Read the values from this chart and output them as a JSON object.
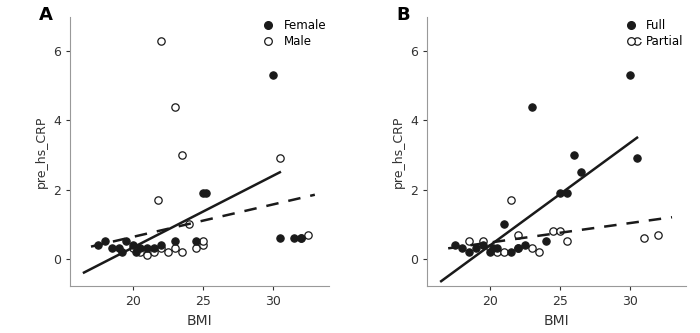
{
  "panel_A": {
    "label": "A",
    "female_bmi": [
      17.5,
      18.0,
      18.5,
      19.0,
      19.2,
      19.5,
      20.0,
      20.2,
      20.5,
      21.0,
      21.5,
      22.0,
      23.0,
      24.5,
      25.0,
      25.2,
      30.0,
      30.5,
      31.5,
      32.0
    ],
    "female_crp": [
      0.4,
      0.5,
      0.3,
      0.3,
      0.2,
      0.5,
      0.4,
      0.2,
      0.3,
      0.3,
      0.3,
      0.4,
      0.5,
      0.5,
      1.9,
      1.9,
      5.3,
      0.6,
      0.6,
      0.6
    ],
    "male_bmi": [
      20.0,
      20.5,
      21.0,
      21.5,
      21.8,
      22.0,
      22.5,
      23.0,
      23.5,
      23.5,
      24.0,
      24.5,
      25.0,
      25.0,
      22.0,
      23.0,
      30.5,
      32.0,
      32.5
    ],
    "male_crp": [
      0.3,
      0.2,
      0.1,
      0.2,
      1.7,
      0.3,
      0.2,
      0.3,
      0.2,
      3.0,
      1.0,
      0.3,
      0.4,
      0.5,
      6.3,
      4.4,
      2.9,
      0.6,
      0.7
    ],
    "solid_line_x": [
      16.5,
      30.5
    ],
    "solid_line_y": [
      -0.4,
      2.5
    ],
    "dashed_line_x": [
      17.0,
      33.0
    ],
    "dashed_line_y": [
      0.35,
      1.85
    ],
    "legend_labels": [
      "Female",
      "Male"
    ],
    "xlabel": "BMI",
    "ylabel": "pre_hs_CRP",
    "ylim": [
      -0.8,
      7.0
    ],
    "xlim": [
      15.5,
      34.0
    ],
    "yticks": [
      0,
      2,
      4,
      6
    ],
    "xticks": [
      20,
      25,
      30
    ]
  },
  "panel_B": {
    "label": "B",
    "full_bmi": [
      17.5,
      18.0,
      18.5,
      19.0,
      19.5,
      20.0,
      20.2,
      20.5,
      21.0,
      21.5,
      22.0,
      22.5,
      23.0,
      24.0,
      25.0,
      25.5,
      26.0,
      26.5,
      30.0,
      30.5
    ],
    "full_crp": [
      0.4,
      0.3,
      0.2,
      0.3,
      0.4,
      0.2,
      0.3,
      0.3,
      1.0,
      0.2,
      0.3,
      0.4,
      4.4,
      0.5,
      1.9,
      1.9,
      3.0,
      2.5,
      5.3,
      2.9
    ],
    "partial_bmi": [
      18.5,
      19.5,
      20.0,
      20.5,
      21.0,
      21.5,
      22.0,
      23.0,
      23.5,
      24.5,
      25.0,
      25.5,
      30.5,
      31.0,
      22.0,
      32.0
    ],
    "partial_crp": [
      0.5,
      0.5,
      0.3,
      0.2,
      0.2,
      1.7,
      0.3,
      0.3,
      0.2,
      0.8,
      0.8,
      0.5,
      6.3,
      0.6,
      0.7,
      0.7
    ],
    "solid_line_x": [
      16.5,
      30.5
    ],
    "solid_line_y": [
      -0.65,
      3.5
    ],
    "dashed_line_x": [
      17.0,
      33.0
    ],
    "dashed_line_y": [
      0.3,
      1.2
    ],
    "legend_labels": [
      "Full",
      "Partial"
    ],
    "xlabel": "BMI",
    "ylabel": "pre_hs_CRP",
    "ylim": [
      -0.8,
      7.0
    ],
    "xlim": [
      15.5,
      34.0
    ],
    "yticks": [
      0,
      2,
      4,
      6
    ],
    "xticks": [
      20,
      25,
      30
    ]
  },
  "marker_size": 28,
  "filled_color": "#1a1a1a",
  "open_color": "#1a1a1a",
  "line_color": "#1a1a1a",
  "background_color": "#ffffff"
}
